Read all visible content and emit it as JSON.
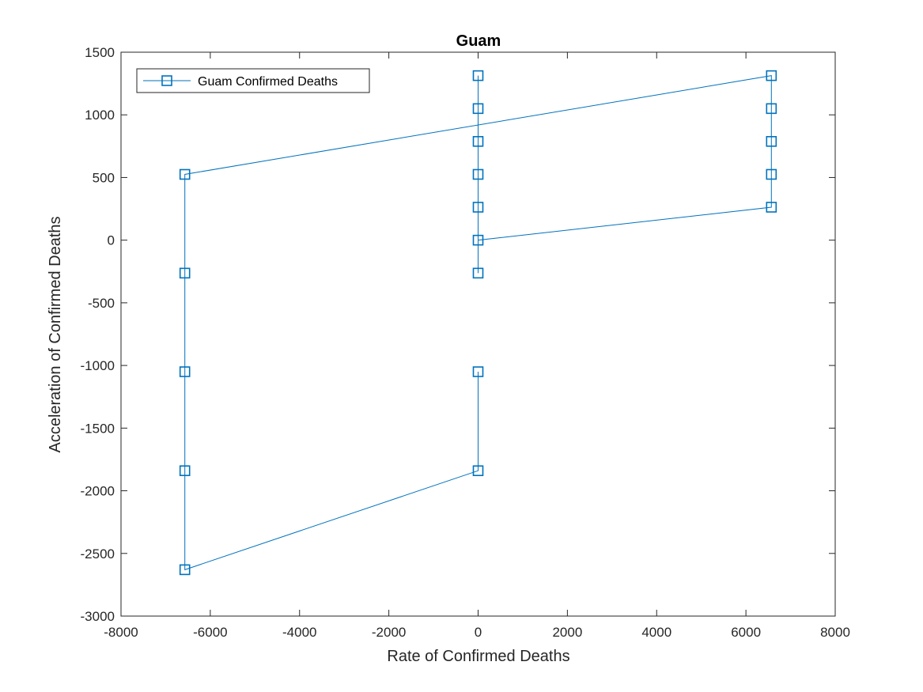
{
  "chart_data": {
    "type": "line",
    "title": "Guam",
    "xlabel": "Rate of Confirmed Deaths",
    "ylabel": "Acceleration of Confirmed Deaths",
    "xlim": [
      -8000,
      8000
    ],
    "ylim": [
      -3000,
      1500
    ],
    "xticks": [
      -8000,
      -6000,
      -4000,
      -2000,
      0,
      2000,
      4000,
      6000,
      8000
    ],
    "yticks": [
      -3000,
      -2500,
      -2000,
      -1500,
      -1000,
      -500,
      0,
      500,
      1000,
      1500
    ],
    "grid": true,
    "legend_position": "top-left",
    "series": [
      {
        "name": "Guam Confirmed Deaths",
        "color": "#0072BD",
        "marker": "square",
        "points": [
          [
            0,
            -1050
          ],
          [
            0,
            -1840
          ],
          [
            -6570,
            -2630
          ],
          [
            -6570,
            -1840
          ],
          [
            -6570,
            -1050
          ],
          [
            -6570,
            -263
          ],
          [
            -6570,
            525
          ],
          [
            6570,
            1313
          ],
          [
            6570,
            1050
          ],
          [
            6570,
            788
          ],
          [
            6570,
            525
          ],
          [
            6570,
            263
          ],
          [
            0,
            0
          ],
          [
            0,
            263
          ],
          [
            0,
            525
          ],
          [
            0,
            788
          ],
          [
            0,
            1050
          ],
          [
            0,
            1313
          ],
          [
            0,
            -263
          ]
        ]
      }
    ]
  }
}
